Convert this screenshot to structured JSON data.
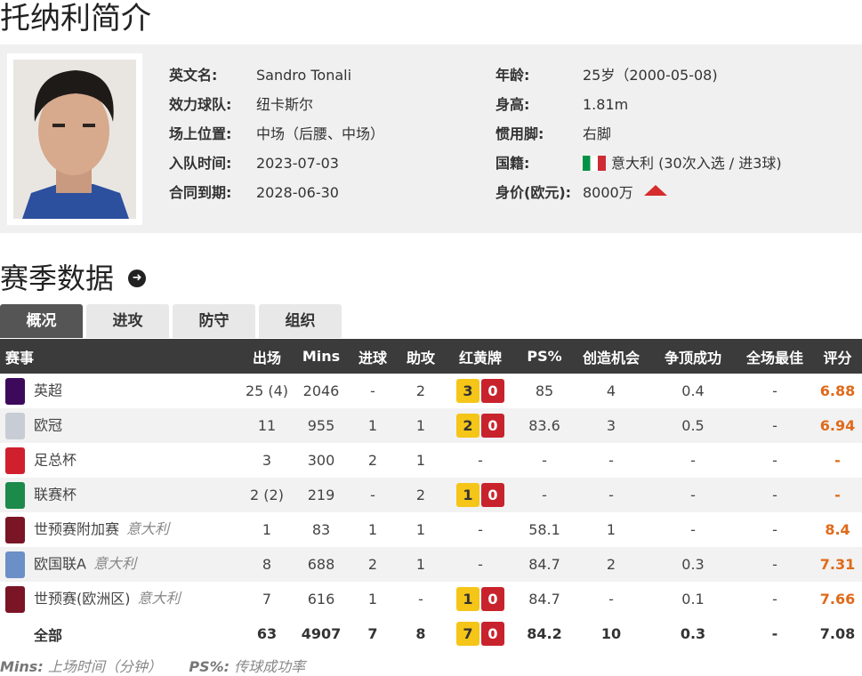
{
  "title": "托纳利简介",
  "profile": {
    "left": [
      {
        "label": "英文名:",
        "value": "Sandro Tonali"
      },
      {
        "label": "效力球队:",
        "value": "纽卡斯尔"
      },
      {
        "label": "场上位置:",
        "value": "中场（后腰、中场）"
      },
      {
        "label": "入队时间:",
        "value": "2023-07-03"
      },
      {
        "label": "合同到期:",
        "value": "2028-06-30"
      }
    ],
    "right": [
      {
        "label": "年龄:",
        "value": "25岁（2000-05-08)"
      },
      {
        "label": "身高:",
        "value": "1.81m"
      },
      {
        "label": "惯用脚:",
        "value": "右脚"
      },
      {
        "label": "国籍:",
        "value": "意大利 (30次入选 / 进3球)"
      },
      {
        "label": "身价(欧元):",
        "value": "8000万"
      }
    ]
  },
  "section_title": "赛季数据",
  "tabs": [
    "概况",
    "进攻",
    "防守",
    "组织"
  ],
  "table": {
    "headers": [
      "赛事",
      "出场",
      "Mins",
      "进球",
      "助攻",
      "红黄牌",
      "PS%",
      "创造机会",
      "争顶成功",
      "全场最佳",
      "评分"
    ],
    "rows": [
      {
        "comp": "英超",
        "nat": "",
        "logo": "#3d0a5b",
        "apps": "25 (4)",
        "mins": "2046",
        "goals": "-",
        "assists": "2",
        "yellow": "3",
        "red": "0",
        "ps": "85",
        "chances": "4",
        "aerial": "0.4",
        "motm": "-",
        "rating": "6.88"
      },
      {
        "comp": "欧冠",
        "nat": "",
        "logo": "#c8ccd4",
        "apps": "11",
        "mins": "955",
        "goals": "1",
        "assists": "1",
        "yellow": "2",
        "red": "0",
        "ps": "83.6",
        "chances": "3",
        "aerial": "0.5",
        "motm": "-",
        "rating": "6.94"
      },
      {
        "comp": "足总杯",
        "nat": "",
        "logo": "#d0202e",
        "apps": "3",
        "mins": "300",
        "goals": "2",
        "assists": "1",
        "yellow": "",
        "red": "",
        "cards": "-",
        "ps": "-",
        "chances": "-",
        "aerial": "-",
        "motm": "-",
        "rating": "-"
      },
      {
        "comp": "联赛杯",
        "nat": "",
        "logo": "#1c8a4a",
        "apps": "2 (2)",
        "mins": "219",
        "goals": "-",
        "assists": "2",
        "yellow": "1",
        "red": "0",
        "ps": "-",
        "chances": "-",
        "aerial": "-",
        "motm": "-",
        "rating": "-"
      },
      {
        "comp": "世预赛附加赛",
        "nat": "意大利",
        "logo": "#7a1526",
        "apps": "1",
        "mins": "83",
        "goals": "1",
        "assists": "1",
        "yellow": "",
        "red": "",
        "cards": "-",
        "ps": "58.1",
        "chances": "1",
        "aerial": "-",
        "motm": "-",
        "rating": "8.4"
      },
      {
        "comp": "欧国联A",
        "nat": "意大利",
        "logo": "#6b8fc7",
        "apps": "8",
        "mins": "688",
        "goals": "2",
        "assists": "1",
        "yellow": "",
        "red": "",
        "cards": "-",
        "ps": "84.7",
        "chances": "2",
        "aerial": "0.3",
        "motm": "-",
        "rating": "7.31"
      },
      {
        "comp": "世预赛(欧洲区)",
        "nat": "意大利",
        "logo": "#7a1526",
        "apps": "7",
        "mins": "616",
        "goals": "1",
        "assists": "-",
        "yellow": "1",
        "red": "0",
        "ps": "84.7",
        "chances": "-",
        "aerial": "0.1",
        "motm": "-",
        "rating": "7.66"
      }
    ],
    "total": {
      "comp": "全部",
      "apps": "63",
      "mins": "4907",
      "goals": "7",
      "assists": "8",
      "yellow": "7",
      "red": "0",
      "ps": "84.2",
      "chances": "10",
      "aerial": "0.3",
      "motm": "-",
      "rating": "7.08"
    }
  },
  "notes": [
    {
      "key": "Mins:",
      "text": "上场时间（分钟）"
    },
    {
      "key": "PS%:",
      "text": "传球成功率"
    }
  ],
  "colors": {
    "header_bg": "#3b3b3b",
    "rating": "#e06a1a",
    "yellow_card": "#f5c518",
    "red_card": "#c8232c",
    "market_value_trend": "#d62c2c"
  }
}
